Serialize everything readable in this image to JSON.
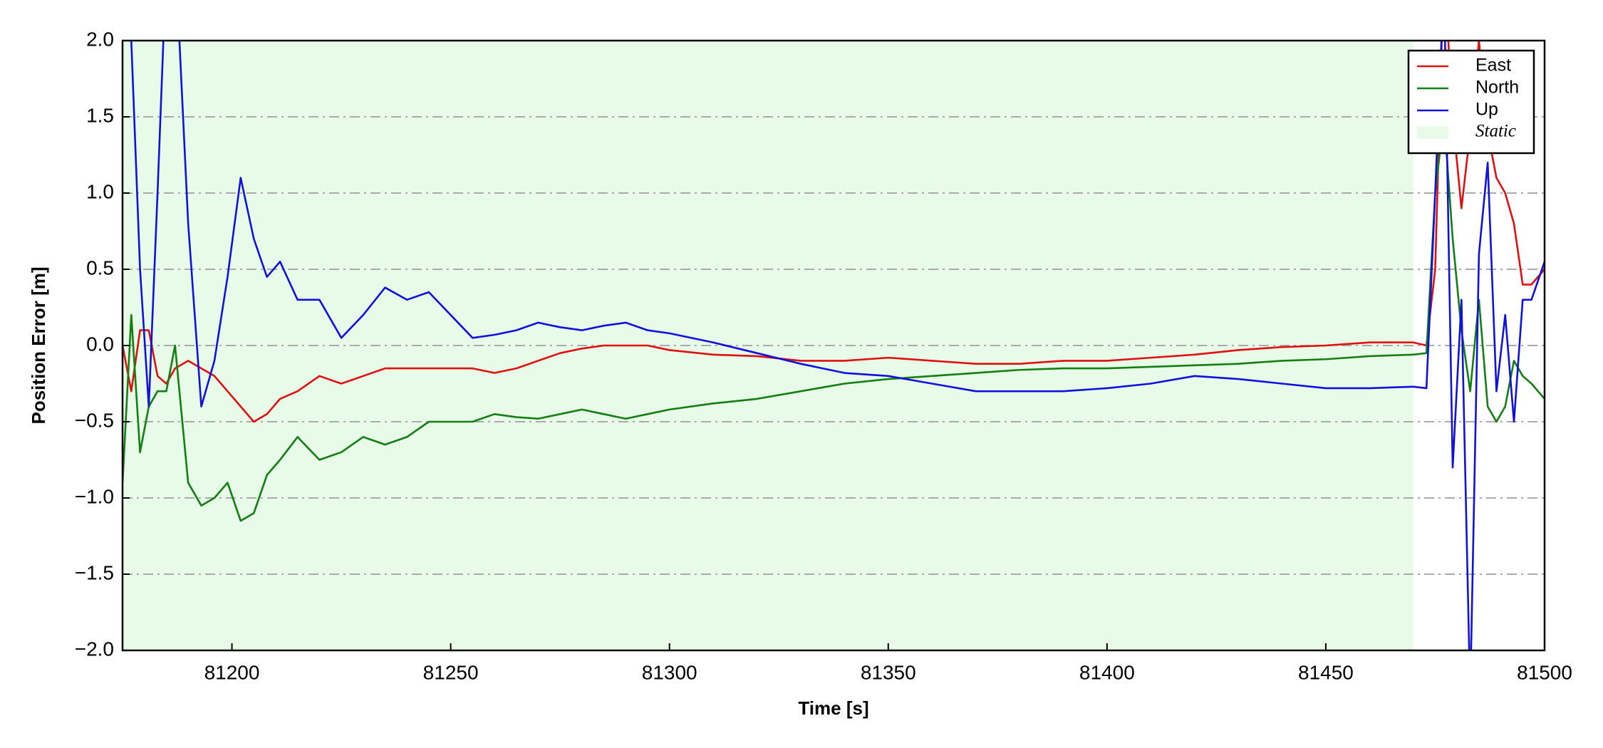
{
  "chart_data": {
    "type": "line",
    "xlabel": "Time [s]",
    "ylabel": "Position Error [m]",
    "x": [
      81175,
      81177,
      81179,
      81181,
      81183,
      81185,
      81187,
      81190,
      81193,
      81196,
      81199,
      81202,
      81205,
      81208,
      81211,
      81215,
      81220,
      81225,
      81230,
      81235,
      81240,
      81245,
      81250,
      81255,
      81260,
      81265,
      81270,
      81275,
      81280,
      81285,
      81290,
      81295,
      81300,
      81310,
      81320,
      81330,
      81340,
      81350,
      81360,
      81370,
      81380,
      81390,
      81400,
      81410,
      81420,
      81430,
      81440,
      81450,
      81460,
      81470,
      81473,
      81475,
      81477,
      81479,
      81481,
      81483,
      81485,
      81487,
      81489,
      81491,
      81493,
      81495,
      81497,
      81500
    ],
    "series": [
      {
        "name": "East",
        "color": "#e01010",
        "values": [
          0.0,
          -0.3,
          0.1,
          0.1,
          -0.2,
          -0.25,
          -0.15,
          -0.1,
          -0.15,
          -0.2,
          -0.3,
          -0.4,
          -0.5,
          -0.45,
          -0.35,
          -0.3,
          -0.2,
          -0.25,
          -0.2,
          -0.15,
          -0.15,
          -0.15,
          -0.15,
          -0.15,
          -0.18,
          -0.15,
          -0.1,
          -0.05,
          -0.02,
          0.0,
          0.0,
          0.0,
          -0.03,
          -0.06,
          -0.07,
          -0.1,
          -0.1,
          -0.08,
          -0.1,
          -0.12,
          -0.12,
          -0.1,
          -0.1,
          -0.08,
          -0.06,
          -0.03,
          -0.01,
          0.0,
          0.02,
          0.02,
          0.0,
          0.5,
          2.5,
          1.5,
          0.9,
          1.4,
          2.0,
          1.4,
          1.1,
          1.0,
          0.8,
          0.4,
          0.4,
          0.5
        ]
      },
      {
        "name": "North",
        "color": "#118011",
        "values": [
          -0.9,
          0.2,
          -0.7,
          -0.4,
          -0.3,
          -0.3,
          0.0,
          -0.9,
          -1.05,
          -1.0,
          -0.9,
          -1.15,
          -1.1,
          -0.85,
          -0.75,
          -0.6,
          -0.75,
          -0.7,
          -0.6,
          -0.65,
          -0.6,
          -0.5,
          -0.5,
          -0.5,
          -0.45,
          -0.47,
          -0.48,
          -0.45,
          -0.42,
          -0.45,
          -0.48,
          -0.45,
          -0.42,
          -0.38,
          -0.35,
          -0.3,
          -0.25,
          -0.22,
          -0.2,
          -0.18,
          -0.16,
          -0.15,
          -0.15,
          -0.14,
          -0.13,
          -0.12,
          -0.1,
          -0.09,
          -0.07,
          -0.06,
          -0.05,
          1.0,
          1.5,
          0.7,
          0.1,
          -0.3,
          0.3,
          -0.4,
          -0.5,
          -0.4,
          -0.1,
          -0.2,
          -0.25,
          -0.35
        ]
      },
      {
        "name": "Up",
        "color": "#1010e0",
        "values": [
          2.3,
          2.0,
          0.5,
          -0.4,
          1.0,
          2.5,
          2.6,
          0.8,
          -0.4,
          -0.1,
          0.45,
          1.1,
          0.7,
          0.45,
          0.55,
          0.3,
          0.3,
          0.05,
          0.2,
          0.38,
          0.3,
          0.35,
          0.2,
          0.05,
          0.07,
          0.1,
          0.15,
          0.12,
          0.1,
          0.13,
          0.15,
          0.1,
          0.08,
          0.02,
          -0.05,
          -0.12,
          -0.18,
          -0.2,
          -0.25,
          -0.3,
          -0.3,
          -0.3,
          -0.28,
          -0.25,
          -0.2,
          -0.22,
          -0.25,
          -0.28,
          -0.28,
          -0.27,
          -0.28,
          1.0,
          2.4,
          -0.8,
          0.3,
          -2.3,
          0.6,
          1.2,
          -0.3,
          0.2,
          -0.5,
          0.3,
          0.3,
          0.55
        ]
      }
    ],
    "static": {
      "label": "Static",
      "range": [
        81175,
        81470
      ],
      "color": "#e8fbe8"
    },
    "xlim": [
      81175,
      81500
    ],
    "xticks": [
      81200,
      81250,
      81300,
      81350,
      81400,
      81450,
      81500
    ],
    "ylim": [
      -2,
      2
    ],
    "yticks": [
      {
        "value": -2,
        "label": "−2.0"
      },
      {
        "value": -1.5,
        "label": "−1.5"
      },
      {
        "value": -1,
        "label": "−1.0"
      },
      {
        "value": -0.5,
        "label": "−0.5"
      },
      {
        "value": 0,
        "label": "0.0"
      },
      {
        "value": 0.5,
        "label": "0.5"
      },
      {
        "value": 1,
        "label": "1.0"
      },
      {
        "value": 1.5,
        "label": "1.5"
      },
      {
        "value": 2,
        "label": "2.0"
      }
    ],
    "grid": true,
    "legend": "upper right"
  }
}
